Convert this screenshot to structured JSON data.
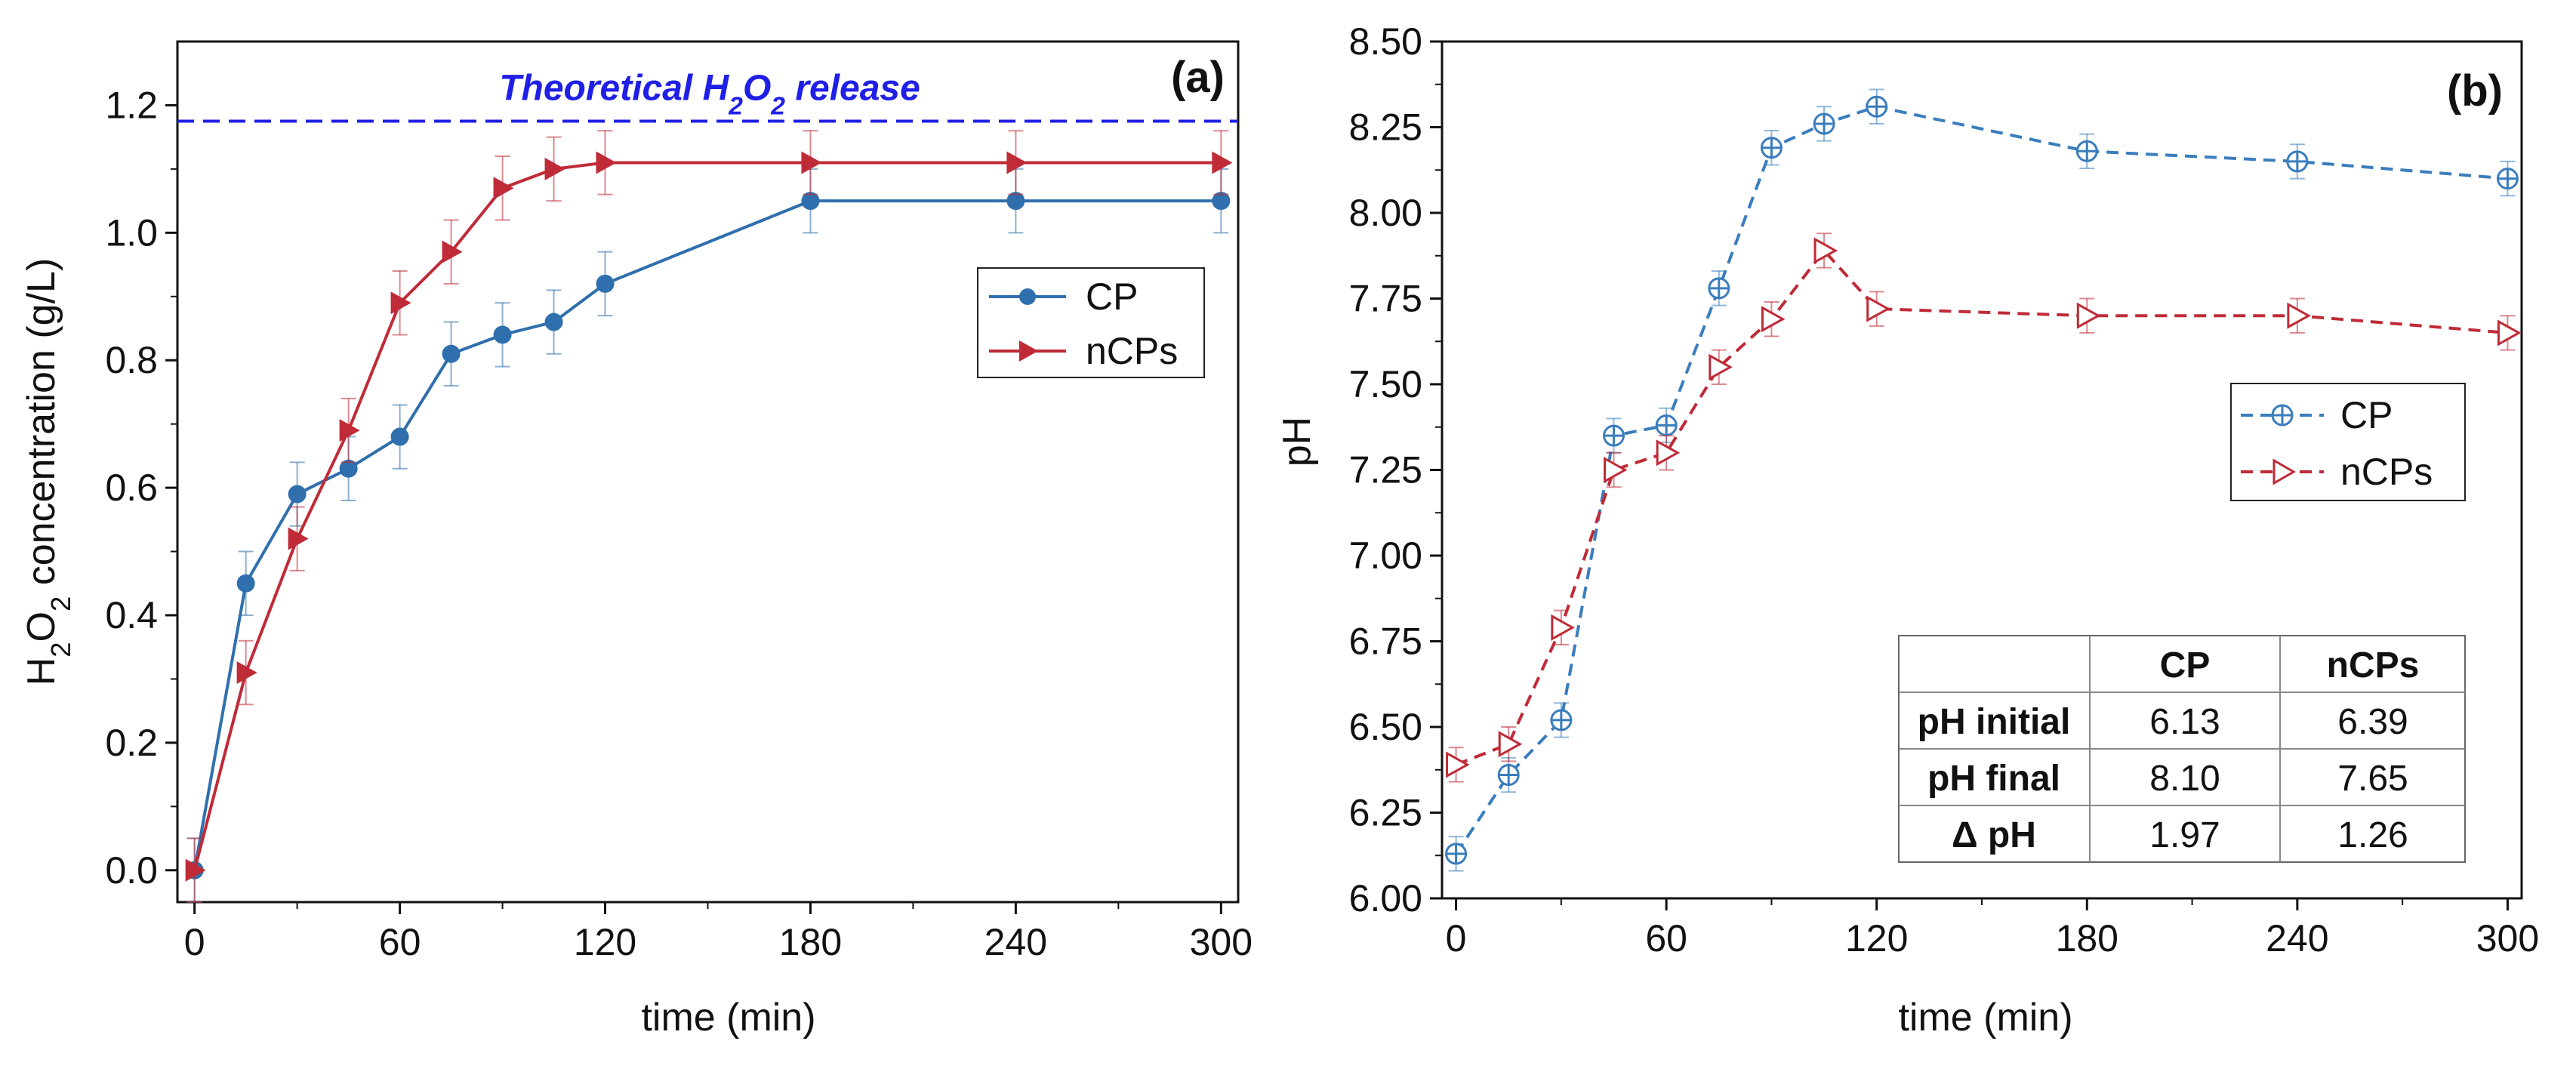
{
  "chart_data": [
    {
      "type": "line",
      "panel_label": "(a)",
      "xlabel": "time (min)",
      "ylabel_parts": [
        "H",
        "2",
        "O",
        "2",
        " concentration (g/L)"
      ],
      "xlim": [
        -5,
        305
      ],
      "ylim": [
        -0.05,
        1.3
      ],
      "xticks": [
        0,
        60,
        120,
        180,
        240,
        300
      ],
      "xtick_labels": [
        "0",
        "60",
        "120",
        "180",
        "240",
        "300"
      ],
      "yticks": [
        0.0,
        0.2,
        0.4,
        0.6,
        0.8,
        1.0,
        1.2
      ],
      "ytick_labels": [
        "0.0",
        "0.2",
        "0.4",
        "0.6",
        "0.8",
        "1.0",
        "1.2"
      ],
      "reference_line": {
        "y": 1.175,
        "color": "#1f1fe6",
        "label_parts": [
          "Theoretical H",
          "2",
          "O",
          "2",
          " release"
        ]
      },
      "legend_position": "upper-right",
      "series": [
        {
          "name": "CP",
          "color": "#2f6fad",
          "marker": "circle-filled",
          "line": "solid",
          "x": [
            0,
            15,
            30,
            45,
            60,
            75,
            90,
            105,
            120,
            180,
            240,
            300
          ],
          "y": [
            0.0,
            0.45,
            0.59,
            0.63,
            0.68,
            0.81,
            0.84,
            0.86,
            0.92,
            1.05,
            1.05,
            1.05
          ],
          "err": [
            0.05,
            0.05,
            0.05,
            0.05,
            0.05,
            0.05,
            0.05,
            0.05,
            0.05,
            0.05,
            0.05,
            0.05
          ]
        },
        {
          "name": "nCPs",
          "color": "#bf2b37",
          "marker": "triangle-right-filled",
          "line": "solid",
          "x": [
            0,
            15,
            30,
            45,
            60,
            75,
            90,
            105,
            120,
            180,
            240,
            300
          ],
          "y": [
            0.0,
            0.31,
            0.52,
            0.69,
            0.89,
            0.97,
            1.07,
            1.1,
            1.11,
            1.11,
            1.11,
            1.11
          ],
          "err": [
            0.05,
            0.05,
            0.05,
            0.05,
            0.05,
            0.05,
            0.05,
            0.05,
            0.05,
            0.05,
            0.05,
            0.05
          ]
        }
      ]
    },
    {
      "type": "line",
      "panel_label": "(b)",
      "xlabel": "time (min)",
      "ylabel": "pH",
      "xlim": [
        -4,
        304
      ],
      "ylim": [
        6.0,
        8.5
      ],
      "xticks": [
        0,
        60,
        120,
        180,
        240,
        300
      ],
      "xtick_labels": [
        "0",
        "60",
        "120",
        "180",
        "240",
        "300"
      ],
      "yticks": [
        6.0,
        6.25,
        6.5,
        6.75,
        7.0,
        7.25,
        7.5,
        7.75,
        8.0,
        8.25,
        8.5
      ],
      "ytick_labels": [
        "6.00",
        "6.25",
        "6.50",
        "6.75",
        "7.00",
        "7.25",
        "7.50",
        "7.75",
        "8.00",
        "8.25",
        "8.50"
      ],
      "legend_position": "center-right",
      "series": [
        {
          "name": "CP",
          "color": "#3a7dbd",
          "marker": "circle-crosshair-open",
          "line": "dashed",
          "x": [
            0,
            15,
            30,
            45,
            60,
            75,
            90,
            105,
            120,
            180,
            240,
            300
          ],
          "y": [
            6.13,
            6.36,
            6.52,
            7.35,
            7.38,
            7.78,
            8.19,
            8.26,
            8.31,
            8.18,
            8.15,
            8.1
          ],
          "err": [
            0.05,
            0.05,
            0.05,
            0.05,
            0.05,
            0.05,
            0.05,
            0.05,
            0.05,
            0.05,
            0.05,
            0.05
          ]
        },
        {
          "name": "nCPs",
          "color": "#bf2b37",
          "marker": "triangle-right-open",
          "line": "dashed",
          "x": [
            0,
            15,
            30,
            45,
            60,
            75,
            90,
            105,
            120,
            180,
            240,
            300
          ],
          "y": [
            6.39,
            6.45,
            6.79,
            7.25,
            7.3,
            7.55,
            7.69,
            7.89,
            7.72,
            7.7,
            7.7,
            7.65
          ],
          "err": [
            0.05,
            0.05,
            0.05,
            0.05,
            0.05,
            0.05,
            0.05,
            0.05,
            0.05,
            0.05,
            0.05,
            0.05
          ]
        }
      ],
      "table": {
        "header": [
          "",
          "CP",
          "nCPs"
        ],
        "rows": [
          [
            "pH initial",
            "6.13",
            "6.39"
          ],
          [
            "pH final",
            "8.10",
            "7.65"
          ],
          [
            "Δ pH",
            "1.97",
            "1.26"
          ]
        ]
      }
    }
  ]
}
